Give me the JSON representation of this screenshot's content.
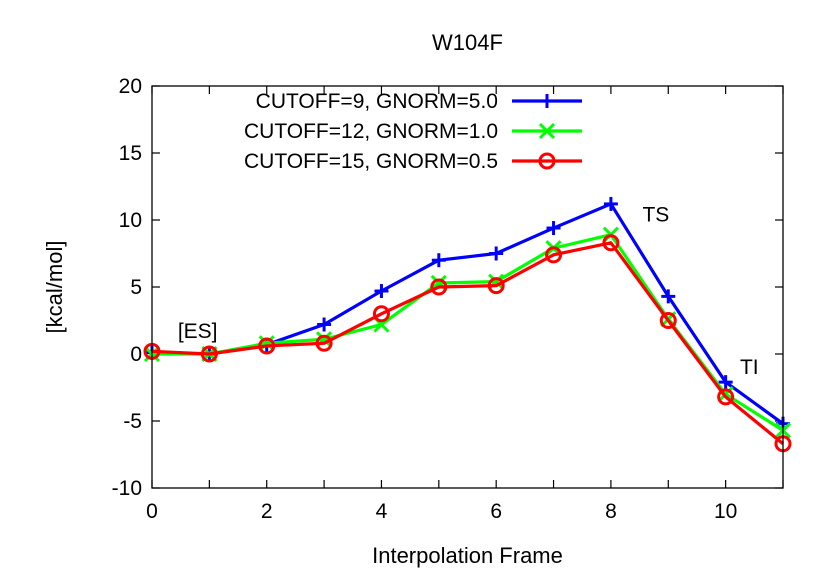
{
  "chart_data": {
    "type": "line",
    "title": "W104F",
    "xlabel": "Interpolation Frame",
    "ylabel": "[kcal/mol]",
    "xlim": [
      0,
      11
    ],
    "ylim": [
      -10,
      20
    ],
    "xticks": [
      0,
      2,
      4,
      6,
      8,
      10
    ],
    "yticks": [
      -10,
      -5,
      0,
      5,
      10,
      15,
      20
    ],
    "x": [
      0,
      1,
      2,
      3,
      4,
      5,
      6,
      7,
      8,
      9,
      10,
      11
    ],
    "series": [
      {
        "name": "CUTOFF=9, GNORM=5.0",
        "color": "#0000ff",
        "marker": "plus",
        "values": [
          0.1,
          0.0,
          0.7,
          2.2,
          4.7,
          7.0,
          7.5,
          9.4,
          11.2,
          4.3,
          -2.1,
          -5.2
        ]
      },
      {
        "name": "CUTOFF=12, GNORM=1.0",
        "color": "#00ff00",
        "marker": "cross",
        "values": [
          0.0,
          0.0,
          0.8,
          1.1,
          2.2,
          5.3,
          5.4,
          7.9,
          8.9,
          2.6,
          -3.0,
          -5.7
        ]
      },
      {
        "name": "CUTOFF=15, GNORM=0.5",
        "color": "#ff0000",
        "marker": "circle",
        "values": [
          0.2,
          0.0,
          0.6,
          0.8,
          3.0,
          5.0,
          5.1,
          7.4,
          8.3,
          2.5,
          -3.2,
          -6.7
        ]
      }
    ],
    "annotations": [
      {
        "text": "[ES]",
        "x": 0.45,
        "y": 1.2
      },
      {
        "text": "TS",
        "x": 8.55,
        "y": 9.9
      },
      {
        "text": "TI",
        "x": 10.25,
        "y": -1.5
      }
    ],
    "legend": "top-left",
    "grid": false
  }
}
